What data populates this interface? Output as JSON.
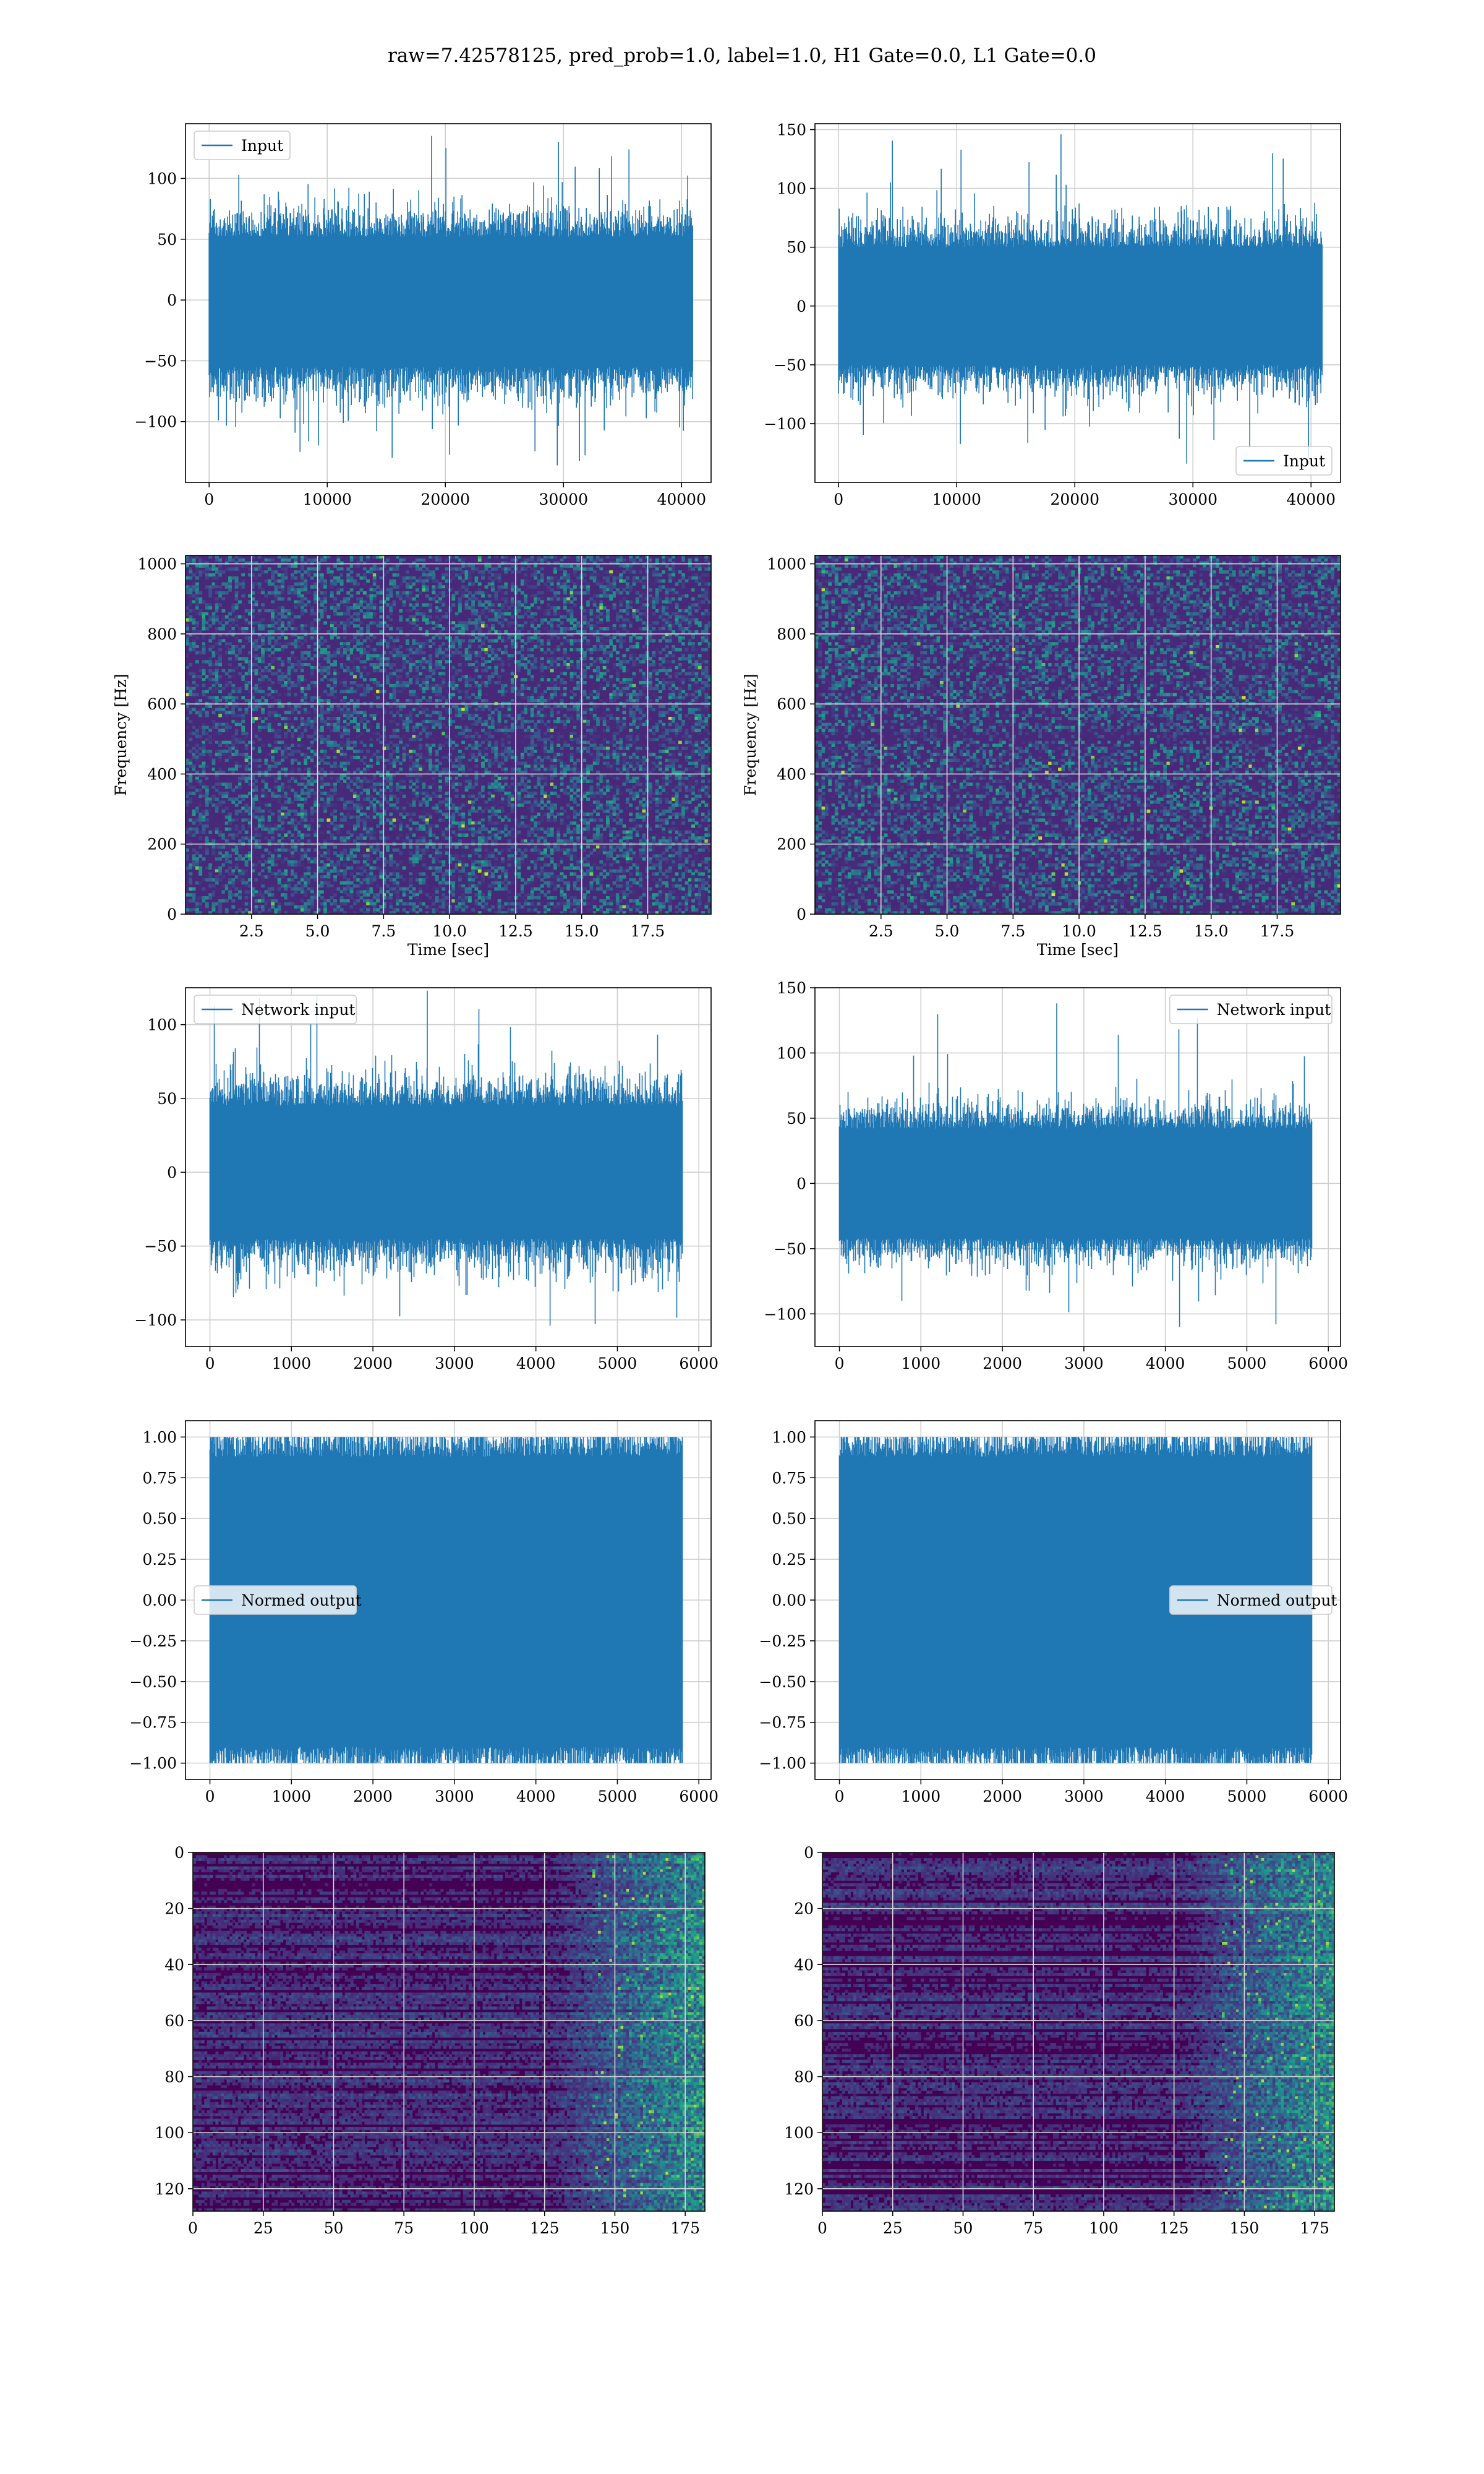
{
  "figure": {
    "suptitle": "raw=7.42578125, pred_prob=1.0, label=1.0, H1 Gate=0.0, L1 Gate=0.0"
  },
  "colors": {
    "line": "#1f77b4",
    "grid": "#cfcfcf",
    "viridis": [
      "#440154",
      "#482878",
      "#3e4989",
      "#31688e",
      "#26828e",
      "#1f9e89",
      "#35b779",
      "#6ece58",
      "#b5de2b",
      "#fde725"
    ]
  },
  "chart_data": [
    {
      "id": "input-h1",
      "type": "line",
      "legend": "Input",
      "legend_loc": "upper left",
      "xlim": [
        -2000,
        42500
      ],
      "ylim": [
        -150,
        145
      ],
      "xticks": [
        0,
        10000,
        20000,
        30000,
        40000
      ],
      "yticks": [
        -100,
        -50,
        0,
        50,
        100
      ],
      "series": [
        {
          "x_range": [
            0,
            40959
          ],
          "core": [
            -55,
            52
          ],
          "envelope": [
            -136,
            135
          ]
        }
      ]
    },
    {
      "id": "input-l1",
      "type": "line",
      "legend": "Input",
      "legend_loc": "lower right",
      "xlim": [
        -2000,
        42500
      ],
      "ylim": [
        -150,
        155
      ],
      "xticks": [
        0,
        10000,
        20000,
        30000,
        40000
      ],
      "yticks": [
        -100,
        -50,
        0,
        50,
        100,
        150
      ],
      "series": [
        {
          "x_range": [
            0,
            40959
          ],
          "core": [
            -50,
            50
          ],
          "envelope": [
            -134,
            146
          ]
        }
      ]
    },
    {
      "id": "spectrogram-h1",
      "type": "heatmap",
      "xlim": [
        0,
        19.9
      ],
      "ylim": [
        0,
        1024
      ],
      "xticks": [
        2.5,
        5.0,
        7.5,
        10.0,
        12.5,
        15.0,
        17.5
      ],
      "yticks": [
        0,
        200,
        400,
        600,
        800,
        1000
      ],
      "xlabel": "Time [sec]",
      "ylabel": "Frequency [Hz]"
    },
    {
      "id": "spectrogram-l1",
      "type": "heatmap",
      "xlim": [
        0,
        19.9
      ],
      "ylim": [
        0,
        1024
      ],
      "xticks": [
        2.5,
        5.0,
        7.5,
        10.0,
        12.5,
        15.0,
        17.5
      ],
      "yticks": [
        0,
        200,
        400,
        600,
        800,
        1000
      ],
      "xlabel": "Time [sec]",
      "ylabel": "Frequency [Hz]"
    },
    {
      "id": "network-input-h1",
      "type": "line",
      "legend": "Network input",
      "legend_loc": "upper left",
      "xlim": [
        -300,
        6150
      ],
      "ylim": [
        -118,
        125
      ],
      "xticks": [
        0,
        1000,
        2000,
        3000,
        4000,
        5000,
        6000
      ],
      "yticks": [
        -100,
        -50,
        0,
        50,
        100
      ],
      "series": [
        {
          "x_range": [
            0,
            5800
          ],
          "core": [
            -45,
            45
          ],
          "envelope": [
            -104,
            123
          ]
        }
      ]
    },
    {
      "id": "network-input-l1",
      "type": "line",
      "legend": "Network input",
      "legend_loc": "upper right",
      "xlim": [
        -300,
        6150
      ],
      "ylim": [
        -125,
        150
      ],
      "xticks": [
        0,
        1000,
        2000,
        3000,
        4000,
        5000,
        6000
      ],
      "yticks": [
        -100,
        -50,
        0,
        50,
        100,
        150
      ],
      "series": [
        {
          "x_range": [
            0,
            5800
          ],
          "core": [
            -42,
            42
          ],
          "envelope": [
            -110,
            138
          ]
        }
      ]
    },
    {
      "id": "normed-output-h1",
      "type": "line",
      "legend": "Normed output",
      "legend_loc": "center left",
      "xlim": [
        -300,
        6150
      ],
      "ylim": [
        -1.1,
        1.1
      ],
      "xticks": [
        0,
        1000,
        2000,
        3000,
        4000,
        5000,
        6000
      ],
      "yticks": [
        -1.0,
        -0.75,
        -0.5,
        -0.25,
        0.0,
        0.25,
        0.5,
        0.75,
        1.0
      ],
      "series": [
        {
          "x_range": [
            0,
            5800
          ],
          "core": [
            -0.9,
            0.88
          ],
          "envelope": [
            -1.0,
            1.0
          ]
        }
      ]
    },
    {
      "id": "normed-output-l1",
      "type": "line",
      "legend": "Normed output",
      "legend_loc": "center right",
      "xlim": [
        -300,
        6150
      ],
      "ylim": [
        -1.1,
        1.1
      ],
      "xticks": [
        0,
        1000,
        2000,
        3000,
        4000,
        5000,
        6000
      ],
      "yticks": [
        -1.0,
        -0.75,
        -0.5,
        -0.25,
        0.0,
        0.25,
        0.5,
        0.75,
        1.0
      ],
      "series": [
        {
          "x_range": [
            0,
            5800
          ],
          "core": [
            -0.9,
            0.88
          ],
          "envelope": [
            -1.0,
            1.0
          ]
        }
      ]
    },
    {
      "id": "feature-map-h1",
      "type": "heatmap",
      "xlim": [
        0,
        182
      ],
      "ylim": [
        128,
        0
      ],
      "xticks": [
        0,
        25,
        50,
        75,
        100,
        125,
        150,
        175
      ],
      "yticks": [
        0,
        20,
        40,
        60,
        80,
        100,
        120
      ]
    },
    {
      "id": "feature-map-l1",
      "type": "heatmap",
      "xlim": [
        0,
        182
      ],
      "ylim": [
        128,
        0
      ],
      "xticks": [
        0,
        25,
        50,
        75,
        100,
        125,
        150,
        175
      ],
      "yticks": [
        0,
        20,
        40,
        60,
        80,
        100,
        120
      ]
    }
  ]
}
